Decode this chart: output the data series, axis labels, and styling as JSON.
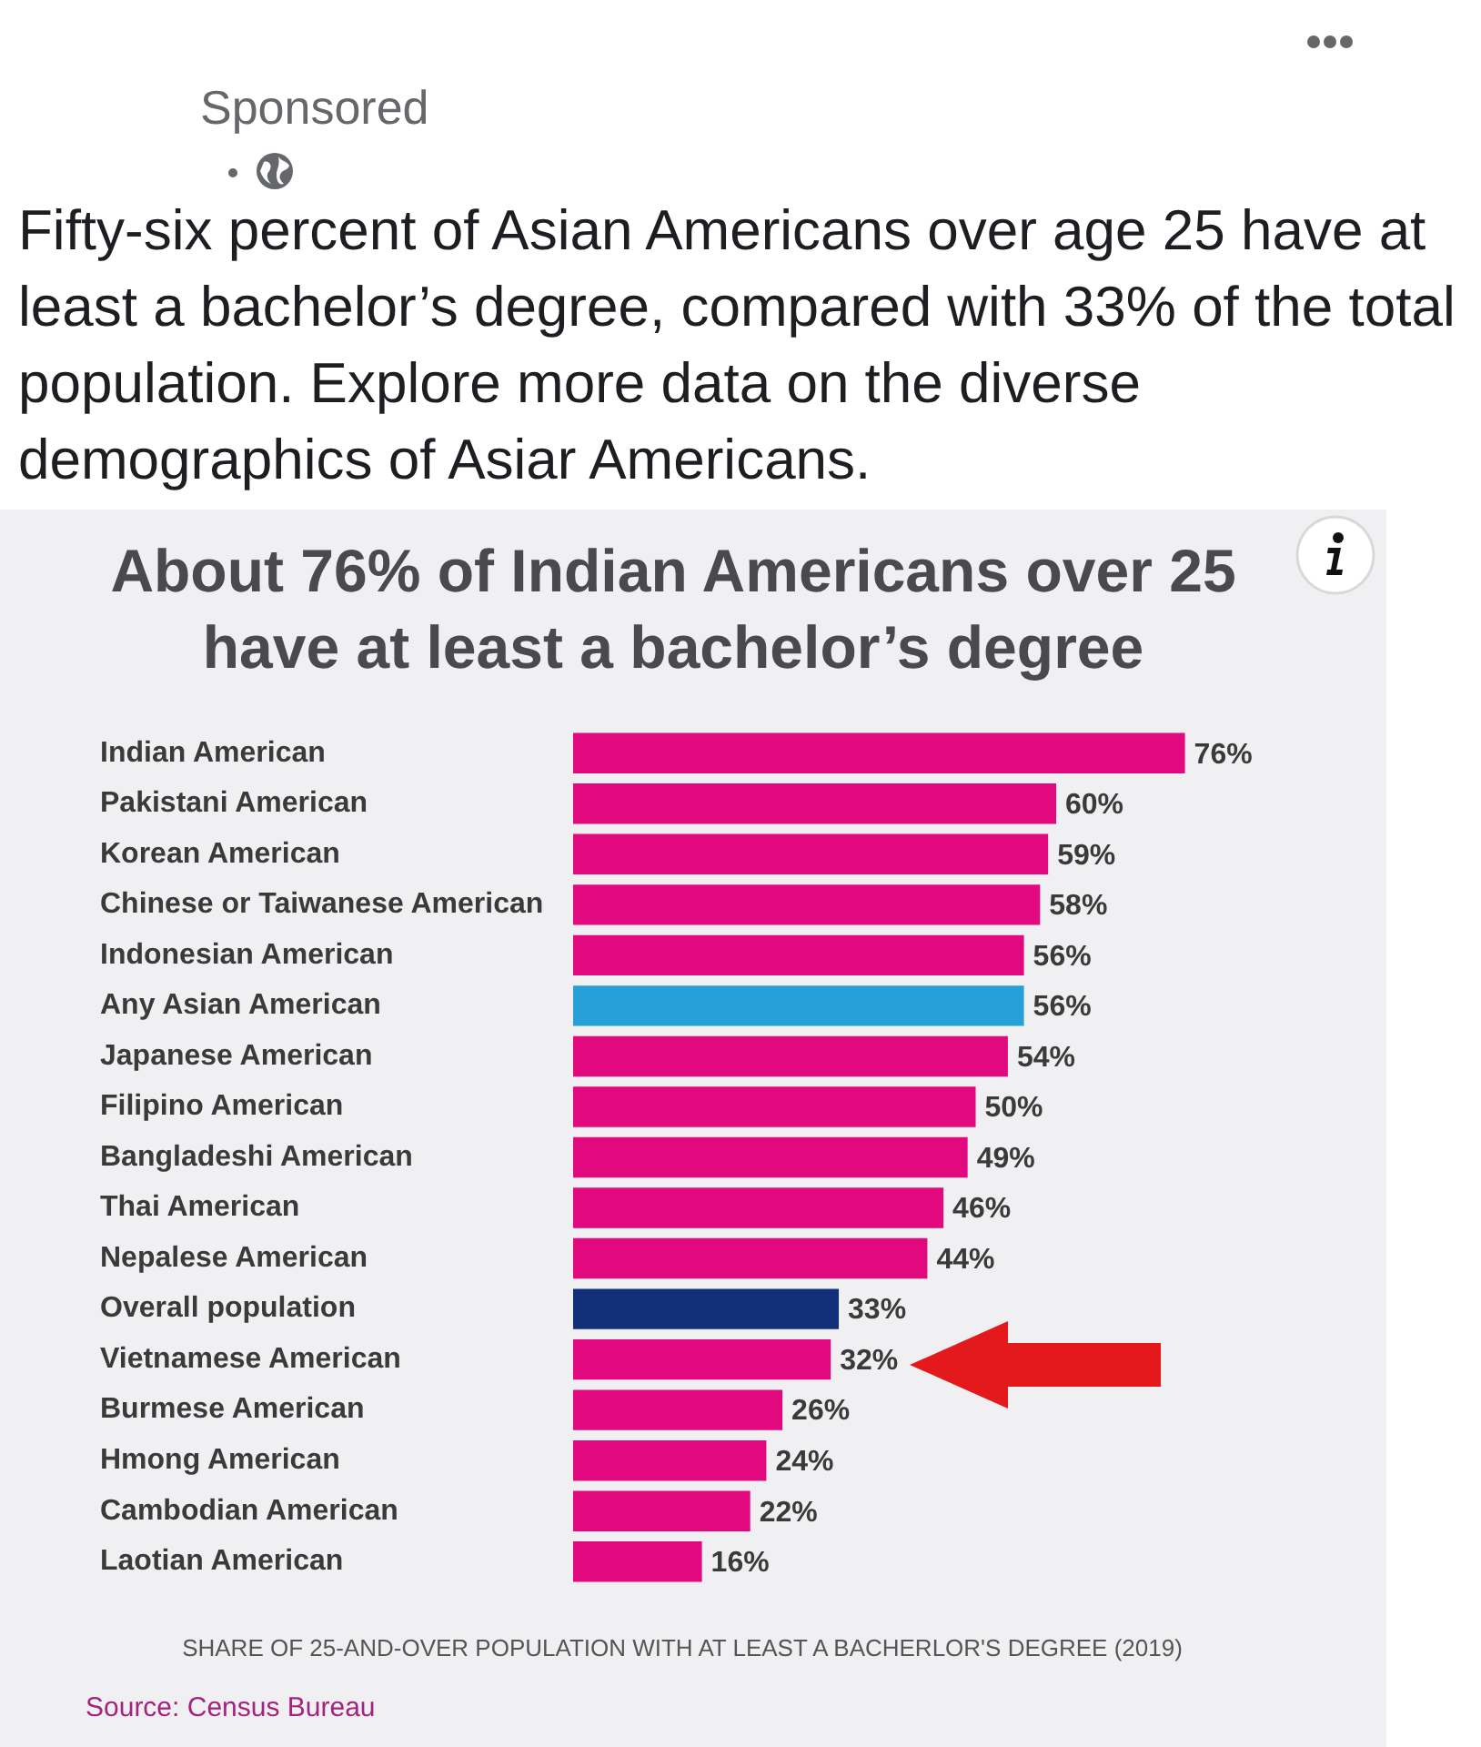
{
  "chart_data": {
    "type": "bar",
    "orientation": "horizontal",
    "title": "About 76% of Indian Americans over 25 have at least a bachelor’s degree",
    "xlabel": "SHARE OF 25-AND-OVER POPULATION WITH AT LEAST A BACHERLOR'S DEGREE (2019)",
    "categories": [
      "Indian American",
      "Pakistani American",
      "Korean American",
      "Chinese or Taiwanese American",
      "Indonesian American",
      "Any Asian American",
      "Japanese American",
      "Filipino American",
      "Bangladeshi American",
      "Thai American",
      "Nepalese American",
      "Overall population",
      "Vietnamese American",
      "Burmese American",
      "Hmong American",
      "Cambodian American",
      "Laotian American"
    ],
    "values": [
      76,
      60,
      59,
      58,
      56,
      56,
      54,
      50,
      49,
      46,
      44,
      33,
      32,
      26,
      24,
      22,
      16
    ],
    "colors": [
      "#e2097e",
      "#e2097e",
      "#e2097e",
      "#e2097e",
      "#e2097e",
      "#27a0da",
      "#e2097e",
      "#e2097e",
      "#e2097e",
      "#e2097e",
      "#e2097e",
      "#12307a",
      "#e2097e",
      "#e2097e",
      "#e2097e",
      "#e2097e",
      "#e2097e"
    ],
    "value_labels": [
      "76%",
      "60%",
      "59%",
      "58%",
      "56%",
      "56%",
      "54%",
      "50%",
      "49%",
      "46%",
      "44%",
      "33%",
      "32%",
      "26%",
      "24%",
      "22%",
      "16%"
    ],
    "annotations": [
      "Sponsored",
      "Fifty-six percent of Asian Americans over age 25 have at least a bachelor’s degree, compared with 33% of the total population. Explore more data on the diverse demographics of Asiar Americans.",
      "Source: Census Bureau"
    ],
    "grid": false,
    "legend": false,
    "tick_labels": "y"
  }
}
